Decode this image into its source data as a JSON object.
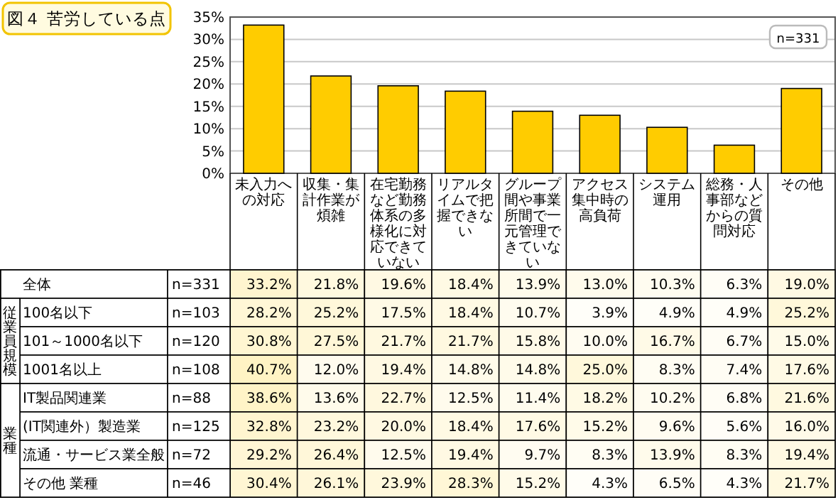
{
  "chart_data": [
    {
      "type": "bar",
      "title": "図４ 苦労している点",
      "annotations": [
        "n=331"
      ],
      "categories": [
        "未入力への対応",
        "収集・集計作業が煩雑",
        "在宅勤務など勤務体系の多様化に対応できていない",
        "リアルタイムで把握できない",
        "グループ間や事業所間で一元管理できていない",
        "アクセス集中時の高負荷",
        "システム運用",
        "総務・人事部などからの質問対応",
        "その他"
      ],
      "values": [
        33.2,
        21.8,
        19.6,
        18.4,
        13.9,
        13.0,
        10.3,
        6.3,
        19.0
      ],
      "color": "#ffcc00",
      "ylim": [
        0,
        35
      ],
      "yticks": [
        {
          "value": 0,
          "label": "0%"
        },
        {
          "value": 5,
          "label": "5%"
        },
        {
          "value": 10,
          "label": "10%"
        },
        {
          "value": 15,
          "label": "15%"
        },
        {
          "value": 20,
          "label": "20%"
        },
        {
          "value": 25,
          "label": "25%"
        },
        {
          "value": 30,
          "label": "30%"
        },
        {
          "value": 35,
          "label": "35%"
        }
      ],
      "grid": "y"
    },
    {
      "type": "heatmap",
      "annotations": [
        "従業員規模",
        "業種"
      ],
      "categories": [
        null,
        null,
        null,
        null,
        null,
        null,
        null,
        null,
        null
      ],
      "y_categories": [
        "全体",
        "100名以下",
        "101～1000名以下",
        "1001名以上",
        "IT製品関連業",
        "(IT関連外）製造業",
        "流通・サービス業全般",
        "その他 業種"
      ],
      "y2_categories": [
        "n=331",
        "n=103",
        "n=120",
        "n=108",
        "n=88",
        "n=125",
        "n=72",
        "n=46"
      ],
      "cells": [
        [
          33.2,
          21.8,
          19.6,
          18.4,
          13.9,
          13.0,
          10.3,
          6.3,
          19.0
        ],
        [
          28.2,
          25.2,
          17.5,
          18.4,
          10.7,
          3.9,
          4.9,
          4.9,
          25.2
        ],
        [
          30.8,
          27.5,
          21.7,
          21.7,
          15.8,
          10.0,
          16.7,
          6.7,
          15.0
        ],
        [
          40.7,
          12.0,
          19.4,
          14.8,
          14.8,
          25.0,
          8.3,
          7.4,
          17.6
        ],
        [
          38.6,
          13.6,
          22.7,
          12.5,
          11.4,
          18.2,
          10.2,
          6.8,
          21.6
        ],
        [
          32.8,
          23.2,
          20.0,
          18.4,
          17.6,
          15.2,
          9.6,
          5.6,
          16.0
        ],
        [
          29.2,
          26.4,
          12.5,
          19.4,
          9.7,
          8.3,
          13.9,
          8.3,
          19.4
        ],
        [
          30.4,
          26.1,
          23.9,
          28.3,
          15.2,
          4.3,
          6.5,
          4.3,
          21.7
        ]
      ],
      "cell_labels": [
        [
          "33.2%",
          "21.8%",
          "19.6%",
          "18.4%",
          "13.9%",
          "13.0%",
          "10.3%",
          "6.3%",
          "19.0%"
        ],
        [
          "28.2%",
          "25.2%",
          "17.5%",
          "18.4%",
          "10.7%",
          "3.9%",
          "4.9%",
          "4.9%",
          "25.2%"
        ],
        [
          "30.8%",
          "27.5%",
          "21.7%",
          "21.7%",
          "15.8%",
          "10.0%",
          "16.7%",
          "6.7%",
          "15.0%"
        ],
        [
          "40.7%",
          "12.0%",
          "19.4%",
          "14.8%",
          "14.8%",
          "25.0%",
          "8.3%",
          "7.4%",
          "17.6%"
        ],
        [
          "38.6%",
          "13.6%",
          "22.7%",
          "12.5%",
          "11.4%",
          "18.2%",
          "10.2%",
          "6.8%",
          "21.6%"
        ],
        [
          "32.8%",
          "23.2%",
          "20.0%",
          "18.4%",
          "17.6%",
          "15.2%",
          "9.6%",
          "5.6%",
          "16.0%"
        ],
        [
          "29.2%",
          "26.4%",
          "12.5%",
          "19.4%",
          "9.7%",
          "8.3%",
          "13.9%",
          "8.3%",
          "19.4%"
        ],
        [
          "30.4%",
          "26.1%",
          "23.9%",
          "28.3%",
          "15.2%",
          "4.3%",
          "6.5%",
          "4.3%",
          "21.7%"
        ]
      ]
    }
  ]
}
